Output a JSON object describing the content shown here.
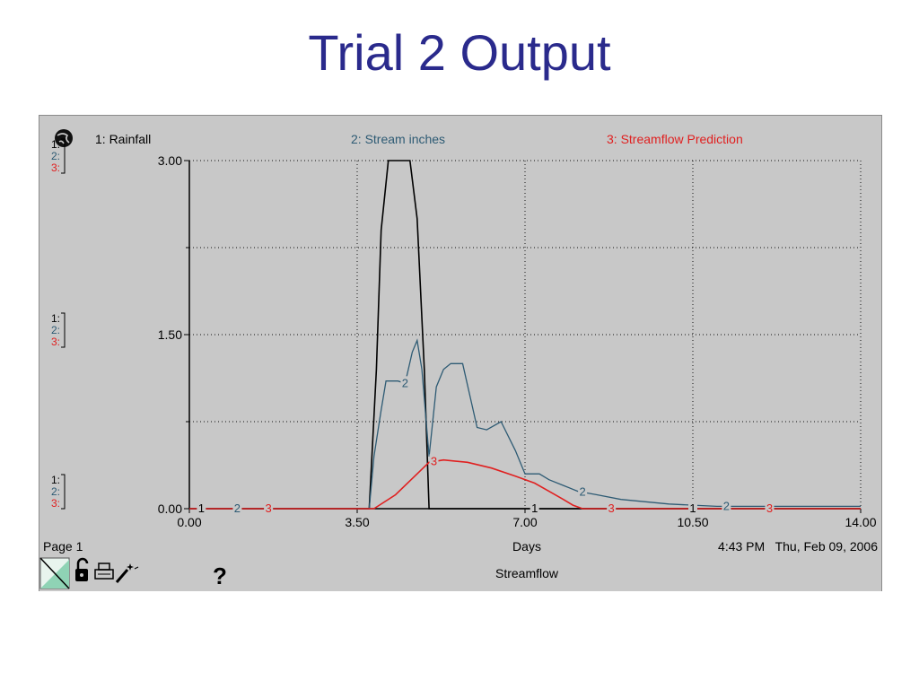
{
  "slide": {
    "title": "Trial 2 Output"
  },
  "graph": {
    "page_label": "Page 1",
    "x_label": "Days",
    "timestamp": "4:43 PM   Thu, Feb 09, 2006",
    "graph_name": "Streamflow",
    "scale_marker_labels": [
      "1:",
      "2:",
      "3:"
    ],
    "help_label": "?",
    "icons": [
      "globe-icon",
      "page-corner-icon",
      "unlock-icon",
      "print-icon",
      "magic-wand-icon"
    ]
  },
  "colors": {
    "rainfall": "#000000",
    "stream": "#2e5b74",
    "prediction": "#e02020",
    "plot_bg": "#c8c8c8"
  },
  "chart_data": {
    "type": "line",
    "xlim": [
      0,
      14
    ],
    "ylim": [
      0,
      3
    ],
    "x_ticks": [
      "0.00",
      "3.50",
      "7.00",
      "10.50",
      "14.00"
    ],
    "x_tick_values": [
      0,
      3.5,
      7,
      10.5,
      14
    ],
    "y_ticks": [
      "0.00",
      "1.50",
      "3.00"
    ],
    "y_tick_values": [
      0,
      1.5,
      3
    ],
    "grid": true,
    "series": [
      {
        "name": "1: Rainfall",
        "label": "1",
        "color": "#000000",
        "x": [
          0,
          3.75,
          3.9,
          4.0,
          4.15,
          4.3,
          4.6,
          4.75,
          4.9,
          5.0,
          5.25,
          7.0,
          10.5,
          14
        ],
        "y": [
          0,
          0,
          1.2,
          2.4,
          3.0,
          3.0,
          3.0,
          2.5,
          1.2,
          0,
          0,
          0,
          0,
          0
        ],
        "marker_x": [
          0.25,
          7.2,
          10.5
        ]
      },
      {
        "name": "2: Stream inches",
        "label": "2",
        "color": "#2e5b74",
        "x": [
          0,
          3.75,
          3.85,
          4.0,
          4.1,
          4.35,
          4.5,
          4.65,
          4.75,
          4.85,
          5.0,
          5.15,
          5.3,
          5.45,
          5.7,
          6.0,
          6.2,
          6.5,
          6.8,
          7.0,
          7.3,
          7.5,
          7.8,
          8.1,
          8.5,
          9.0,
          10.0,
          11.0,
          14.0
        ],
        "y": [
          0,
          0,
          0.45,
          0.85,
          1.1,
          1.1,
          1.08,
          1.35,
          1.45,
          1.2,
          0.45,
          1.05,
          1.2,
          1.25,
          1.25,
          0.7,
          0.68,
          0.75,
          0.5,
          0.3,
          0.3,
          0.25,
          0.2,
          0.15,
          0.12,
          0.08,
          0.04,
          0.02,
          0.02
        ],
        "marker_x": [
          1.0,
          4.5,
          8.2,
          11.2
        ]
      },
      {
        "name": "3: Streamflow Prediction",
        "label": "3",
        "color": "#e02020",
        "x": [
          0,
          3.85,
          4.3,
          4.8,
          5.0,
          5.3,
          5.8,
          6.3,
          6.8,
          7.2,
          7.5,
          7.8,
          8.0,
          8.2,
          9.0,
          10.0,
          14.0
        ],
        "y": [
          0,
          0,
          0.12,
          0.32,
          0.4,
          0.42,
          0.4,
          0.35,
          0.28,
          0.22,
          0.15,
          0.08,
          0.03,
          0,
          0,
          0,
          0
        ],
        "marker_x": [
          1.65,
          5.1,
          8.8,
          12.1
        ]
      }
    ]
  }
}
